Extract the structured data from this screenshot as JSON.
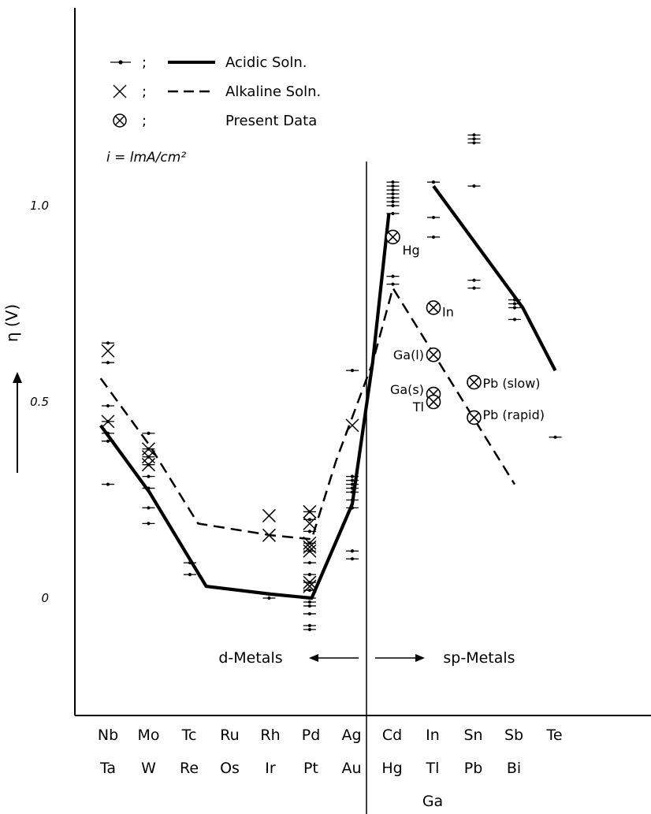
{
  "chart_data": {
    "type": "line",
    "ylabel": "η (V)",
    "y_ticks": [
      "0",
      "0.5",
      "1.0"
    ],
    "ylim": [
      -0.25,
      1.5
    ],
    "categories": [
      {
        "top": "Nb",
        "bottom": "Ta"
      },
      {
        "top": "Mo",
        "bottom": "W"
      },
      {
        "top": "Tc",
        "bottom": "Re"
      },
      {
        "top": "Ru",
        "bottom": "Os"
      },
      {
        "top": "Rh",
        "bottom": "Ir"
      },
      {
        "top": "Pd",
        "bottom": "Pt"
      },
      {
        "top": "Ag",
        "bottom": "Au"
      },
      {
        "top": "Cd",
        "bottom": "Hg"
      },
      {
        "top": "In",
        "bottom": "Tl",
        "third": "Ga"
      },
      {
        "top": "Sn",
        "bottom": "Pb"
      },
      {
        "top": "Sb",
        "bottom": "Bi"
      },
      {
        "top": "Te",
        "bottom": ""
      }
    ],
    "legend": {
      "items": [
        {
          "marker": "dot",
          "sep": ";",
          "line": "solid",
          "label": "Acidic Soln."
        },
        {
          "marker": "x",
          "sep": ";",
          "line": "dashed",
          "label": "Alkaline Soln."
        },
        {
          "marker": "circle-x",
          "sep": ";",
          "line": "none",
          "label": "Present Data"
        }
      ],
      "condition": "i = lmA/cm²"
    },
    "divider": {
      "x": 6.5,
      "left_label": "d-Metals",
      "right_label": "sp-Metals"
    },
    "series": [
      {
        "label": "Acidic Soln.",
        "style": "solid",
        "segments": [
          [
            [
              -0.2,
              0.44
            ],
            [
              1.0,
              0.27
            ],
            [
              2.4,
              0.03
            ],
            [
              4.0,
              0.01
            ],
            [
              5.0,
              0.0
            ],
            [
              6.0,
              0.24
            ],
            [
              6.5,
              0.6
            ],
            [
              6.9,
              0.98
            ]
          ],
          [
            [
              8.0,
              1.05
            ],
            [
              10.2,
              0.74
            ],
            [
              11.0,
              0.58
            ]
          ]
        ]
      },
      {
        "label": "Alkaline Soln.",
        "style": "dashed",
        "segments": [
          [
            [
              -0.2,
              0.56
            ],
            [
              1.0,
              0.39
            ],
            [
              2.2,
              0.19
            ],
            [
              4.0,
              0.16
            ],
            [
              5.0,
              0.15
            ],
            [
              5.6,
              0.35
            ],
            [
              6.5,
              0.6
            ],
            [
              7.0,
              0.79
            ],
            [
              10.0,
              0.29
            ]
          ]
        ]
      }
    ],
    "acidic_points": [
      {
        "x": -0.02,
        "y": [
          0.65,
          0.6,
          0.49,
          0.45,
          0.42,
          0.4,
          0.29
        ]
      },
      {
        "x": 0.98,
        "y": [
          0.42,
          0.38,
          0.36,
          0.34,
          0.31,
          0.28,
          0.23,
          0.19
        ]
      },
      {
        "x": 2.0,
        "y": [
          0.09,
          0.06
        ]
      },
      {
        "x": 3.95,
        "y": [
          0.01,
          0.0
        ]
      },
      {
        "x": 4.95,
        "y": [
          0.22,
          0.2,
          0.17,
          0.14,
          0.12,
          0.09,
          0.06,
          0.04,
          0.02,
          0.0,
          -0.01,
          -0.02,
          -0.04,
          -0.07,
          -0.08
        ]
      },
      {
        "x": 6.0,
        "y": [
          0.58,
          0.31,
          0.3,
          0.29,
          0.28,
          0.27,
          0.25,
          0.23,
          0.12,
          0.1
        ]
      },
      {
        "x": 7.0,
        "y": [
          1.06,
          1.05,
          1.04,
          1.03,
          1.02,
          1.01,
          1.0,
          0.98,
          0.82,
          0.8
        ]
      },
      {
        "x": 8.0,
        "y": [
          1.06,
          0.97,
          0.92
        ]
      },
      {
        "x": 9.0,
        "y": [
          1.18,
          1.17,
          1.16,
          1.05,
          0.81,
          0.79
        ]
      },
      {
        "x": 10.0,
        "y": [
          0.76,
          0.75,
          0.74,
          0.71
        ]
      },
      {
        "x": 11.0,
        "y": [
          0.41
        ]
      }
    ],
    "alkaline_points": [
      {
        "x": -0.02,
        "y": [
          0.63,
          0.45
        ]
      },
      {
        "x": 0.98,
        "y": [
          0.38,
          0.36,
          0.34
        ]
      },
      {
        "x": 3.95,
        "y": [
          0.21,
          0.16
        ]
      },
      {
        "x": 4.95,
        "y": [
          0.22,
          0.19,
          0.14,
          0.13,
          0.12,
          0.04,
          0.03
        ]
      },
      {
        "x": 6.0,
        "y": [
          0.44
        ]
      }
    ],
    "present_data": [
      {
        "x": 7.0,
        "y": 0.92,
        "label": "Hg"
      },
      {
        "x": 8.0,
        "y": 0.74,
        "label": "In"
      },
      {
        "x": 8.0,
        "y": 0.62,
        "label": "Ga(l)"
      },
      {
        "x": 8.0,
        "y": 0.52,
        "label": "Ga(s)"
      },
      {
        "x": 8.0,
        "y": 0.5,
        "label": "Tl"
      },
      {
        "x": 9.0,
        "y": 0.55,
        "label": "Pb (slow)"
      },
      {
        "x": 9.0,
        "y": 0.46,
        "label": "Pb (rapid)"
      }
    ]
  }
}
